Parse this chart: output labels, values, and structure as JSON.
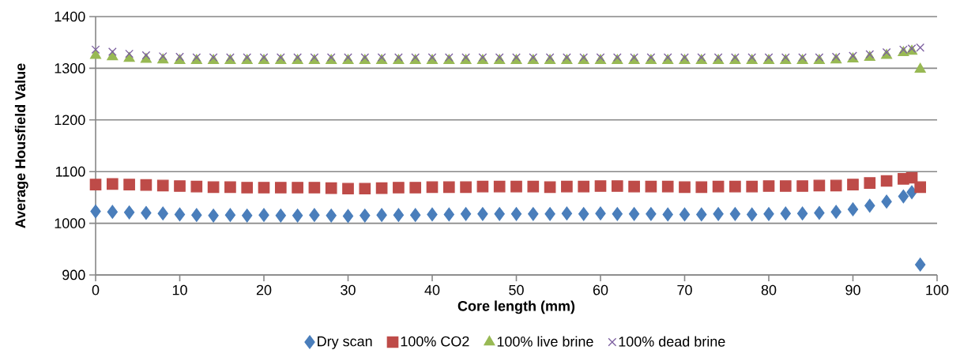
{
  "chart_data": {
    "type": "scatter",
    "xlabel": "Core length (mm)",
    "ylabel": "Average Housfield Value",
    "x": [
      0,
      2,
      4,
      6,
      8,
      10,
      12,
      14,
      16,
      18,
      20,
      22,
      24,
      26,
      28,
      30,
      32,
      34,
      36,
      38,
      40,
      42,
      44,
      46,
      48,
      50,
      52,
      54,
      56,
      58,
      60,
      62,
      64,
      66,
      68,
      70,
      72,
      74,
      76,
      78,
      80,
      82,
      84,
      86,
      88,
      90,
      92,
      94,
      96,
      97,
      98
    ],
    "series": [
      {
        "name": "Dry scan",
        "color": "#4a7ebb",
        "marker": "diamond",
        "values": [
          1023,
          1022,
          1021,
          1020,
          1019,
          1017,
          1016,
          1015,
          1016,
          1015,
          1016,
          1015,
          1015,
          1016,
          1015,
          1014,
          1015,
          1016,
          1016,
          1016,
          1017,
          1017,
          1018,
          1018,
          1018,
          1018,
          1018,
          1018,
          1019,
          1018,
          1019,
          1018,
          1018,
          1018,
          1017,
          1017,
          1017,
          1018,
          1018,
          1017,
          1018,
          1019,
          1019,
          1020,
          1022,
          1027,
          1034,
          1042,
          1052,
          1060,
          920
        ]
      },
      {
        "name": "100% CO2",
        "color": "#be4b48",
        "marker": "square",
        "values": [
          1075,
          1076,
          1075,
          1074,
          1073,
          1072,
          1071,
          1070,
          1070,
          1069,
          1069,
          1069,
          1069,
          1069,
          1068,
          1067,
          1067,
          1068,
          1069,
          1069,
          1070,
          1070,
          1070,
          1071,
          1071,
          1071,
          1071,
          1070,
          1071,
          1071,
          1072,
          1072,
          1071,
          1071,
          1071,
          1070,
          1070,
          1071,
          1071,
          1071,
          1072,
          1072,
          1072,
          1073,
          1073,
          1075,
          1078,
          1082,
          1086,
          1088,
          1070
        ]
      },
      {
        "name": "100% live brine",
        "color": "#98b954",
        "marker": "triangle",
        "values": [
          1325,
          1322,
          1319,
          1317,
          1316,
          1315,
          1315,
          1315,
          1315,
          1315,
          1315,
          1315,
          1315,
          1315,
          1315,
          1315,
          1315,
          1315,
          1315,
          1315,
          1315,
          1315,
          1315,
          1315,
          1315,
          1315,
          1315,
          1315,
          1315,
          1315,
          1315,
          1315,
          1315,
          1315,
          1315,
          1315,
          1315,
          1315,
          1315,
          1315,
          1315,
          1315,
          1315,
          1315,
          1316,
          1318,
          1321,
          1325,
          1330,
          1333,
          1298
        ]
      },
      {
        "name": "100% dead brine",
        "color": "#7d60a0",
        "marker": "cross",
        "values": [
          1336,
          1332,
          1328,
          1325,
          1323,
          1322,
          1321,
          1321,
          1321,
          1321,
          1321,
          1321,
          1321,
          1321,
          1321,
          1321,
          1321,
          1321,
          1321,
          1321,
          1321,
          1321,
          1321,
          1321,
          1321,
          1321,
          1321,
          1321,
          1321,
          1321,
          1321,
          1321,
          1321,
          1321,
          1321,
          1321,
          1321,
          1321,
          1321,
          1321,
          1321,
          1321,
          1321,
          1321,
          1322,
          1324,
          1327,
          1331,
          1336,
          1338,
          1340
        ]
      }
    ],
    "xlim": [
      0,
      100
    ],
    "ylim": [
      900,
      1400
    ],
    "xticks": [
      0,
      10,
      20,
      30,
      40,
      50,
      60,
      70,
      80,
      90,
      100
    ],
    "yticks": [
      900,
      1000,
      1100,
      1200,
      1300,
      1400
    ],
    "grid": "y",
    "legend": "bottom"
  }
}
